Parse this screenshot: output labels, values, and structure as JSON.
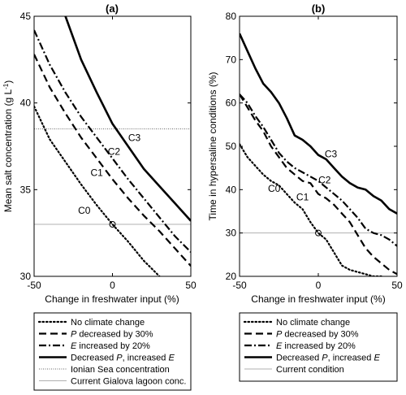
{
  "chart_data": [
    {
      "type": "line",
      "title": "(a)",
      "xlabel": "Change in freshwater input (%)",
      "ylabel": "Mean salt concentration (g L",
      "ylabel_sup": "-1",
      "ylabel_end": ")",
      "xlim": [
        -50,
        50
      ],
      "ylim": [
        30,
        45
      ],
      "xticks": [
        -50,
        0,
        50
      ],
      "yticks": [
        30,
        35,
        40,
        45
      ],
      "grid": false,
      "legend_position": "below",
      "series": [
        {
          "name": "No climate change",
          "style": "dotted",
          "width": 2.2,
          "x": [
            -50,
            -40,
            -30,
            -20,
            -10,
            0,
            10,
            20,
            30
          ],
          "y": [
            39.8,
            37.9,
            36.6,
            35.3,
            34.1,
            33.0,
            32.0,
            30.9,
            30.0
          ]
        },
        {
          "name": "P decreased by 30%",
          "name_italic": "P",
          "name_rest": " decreased by 30%",
          "style": "dashed",
          "width": 2.2,
          "x": [
            -50,
            -40,
            -30,
            -20,
            -10,
            0,
            10,
            20,
            30,
            40,
            50
          ],
          "y": [
            42.8,
            40.9,
            39.4,
            38.0,
            36.8,
            35.6,
            34.5,
            33.5,
            32.6,
            31.6,
            30.6
          ]
        },
        {
          "name": "E increased by 20%",
          "name_italic": "E",
          "name_rest": " increased by 20%",
          "style": "dashdot",
          "width": 2.2,
          "x": [
            -50,
            -40,
            -30,
            -20,
            -10,
            0,
            10,
            20,
            30,
            40,
            50
          ],
          "y": [
            44.2,
            42.2,
            40.6,
            39.2,
            38.0,
            36.8,
            35.6,
            34.5,
            33.4,
            32.3,
            31.4
          ]
        },
        {
          "name": "Decreased P, increased E",
          "name_pre": "Decreased ",
          "name_italic": "P",
          "name_mid": ", increased ",
          "name_italic2": "E",
          "style": "solid",
          "width": 2.6,
          "x": [
            -30,
            -20,
            -10,
            0,
            10,
            20,
            30,
            40,
            50
          ],
          "y": [
            45.0,
            42.5,
            40.6,
            38.8,
            37.5,
            36.2,
            35.2,
            34.2,
            33.2
          ]
        }
      ],
      "hlines": [
        {
          "name": "Ionian Sea concentration",
          "y": 38.5,
          "color": "#666666",
          "style": "fine-dotted"
        },
        {
          "name": "Current Gialova lagoon conc.",
          "y": 33.0,
          "color": "#b0b0b0",
          "style": "solid"
        }
      ],
      "marker": {
        "x": 0,
        "y": 33.0
      },
      "curve_labels": [
        {
          "text": "C0",
          "x": -18,
          "y": 33.6
        },
        {
          "text": "C1",
          "x": -10,
          "y": 35.8
        },
        {
          "text": "C2",
          "x": 1,
          "y": 37.0
        },
        {
          "text": "C3",
          "x": 14,
          "y": 37.8
        }
      ]
    },
    {
      "type": "line",
      "title": "(b)",
      "xlabel": "Change in freshwater input (%)",
      "ylabel": "Time in hypersaline conditions (%)",
      "xlim": [
        -50,
        50
      ],
      "ylim": [
        20,
        80
      ],
      "xticks": [
        -50,
        0,
        50
      ],
      "yticks": [
        20,
        30,
        40,
        50,
        60,
        70,
        80
      ],
      "grid": false,
      "legend_position": "below",
      "series": [
        {
          "name": "No climate change",
          "style": "dotted",
          "width": 2.2,
          "x": [
            -50,
            -45,
            -40,
            -35,
            -30,
            -25,
            -20,
            -15,
            -10,
            -5,
            0,
            5,
            10,
            15,
            20,
            25,
            30,
            35,
            40
          ],
          "y": [
            50.5,
            47.5,
            45.5,
            43.5,
            42.0,
            41.0,
            39.0,
            37.0,
            35.5,
            32.5,
            30.0,
            28.5,
            25.5,
            22.5,
            21.5,
            21.0,
            20.5,
            20.0,
            20.0
          ]
        },
        {
          "name": "P decreased by 30%",
          "name_italic": "P",
          "name_rest": " decreased by 30%",
          "style": "dashed",
          "width": 2.2,
          "x": [
            -50,
            -45,
            -40,
            -35,
            -30,
            -25,
            -20,
            -15,
            -10,
            -5,
            0,
            5,
            10,
            15,
            20,
            25,
            30,
            35,
            40,
            45,
            50
          ],
          "y": [
            62.0,
            59.0,
            56.0,
            53.5,
            50.0,
            47.5,
            45.0,
            43.5,
            42.0,
            41.5,
            39.0,
            38.0,
            36.5,
            34.5,
            32.5,
            29.5,
            26.5,
            24.5,
            23.0,
            21.5,
            20.5
          ]
        },
        {
          "name": "E increased by 20%",
          "name_italic": "E",
          "name_rest": " increased by 20%",
          "style": "dashdot",
          "width": 2.2,
          "x": [
            -50,
            -45,
            -40,
            -35,
            -30,
            -25,
            -20,
            -15,
            -10,
            -5,
            0,
            5,
            10,
            15,
            20,
            25,
            30,
            35,
            40,
            45,
            50
          ],
          "y": [
            62.0,
            60.0,
            57.0,
            54.5,
            51.5,
            48.5,
            46.5,
            45.0,
            44.0,
            43.0,
            42.0,
            40.5,
            39.0,
            37.5,
            35.5,
            33.5,
            31.0,
            30.0,
            29.5,
            28.5,
            27.0
          ]
        },
        {
          "name": "Decreased P, increased E",
          "name_pre": "Decreased ",
          "name_italic": "P",
          "name_mid": ", increased ",
          "name_italic2": "E",
          "style": "solid",
          "width": 2.6,
          "x": [
            -50,
            -45,
            -40,
            -35,
            -30,
            -25,
            -20,
            -15,
            -10,
            -5,
            0,
            5,
            10,
            15,
            20,
            25,
            30,
            35,
            40,
            45,
            50
          ],
          "y": [
            76.0,
            72.0,
            68.0,
            64.5,
            62.5,
            60.0,
            56.5,
            52.5,
            51.5,
            50.0,
            48.0,
            47.0,
            45.0,
            43.0,
            41.5,
            40.5,
            40.0,
            38.5,
            37.5,
            35.5,
            34.5
          ]
        }
      ],
      "hlines": [
        {
          "name": "Current condition",
          "y": 30.0,
          "color": "#b0b0b0",
          "style": "solid"
        }
      ],
      "marker": {
        "x": 0,
        "y": 30.0
      },
      "curve_labels": [
        {
          "text": "C0",
          "x": -28,
          "y": 39.5
        },
        {
          "text": "C1",
          "x": -10,
          "y": 37.5
        },
        {
          "text": "C2",
          "x": 4,
          "y": 41.5
        },
        {
          "text": "C3",
          "x": 8,
          "y": 47.5
        }
      ]
    }
  ]
}
